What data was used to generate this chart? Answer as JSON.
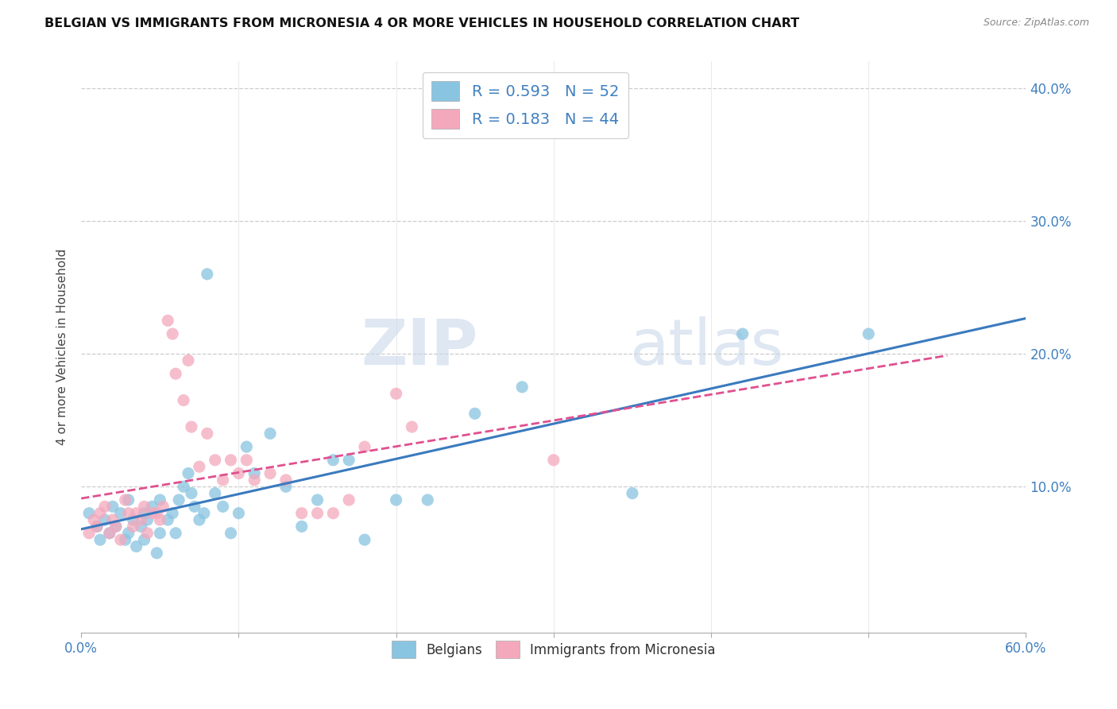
{
  "title": "BELGIAN VS IMMIGRANTS FROM MICRONESIA 4 OR MORE VEHICLES IN HOUSEHOLD CORRELATION CHART",
  "source": "Source: ZipAtlas.com",
  "ylabel": "4 or more Vehicles in Household",
  "xlim": [
    0.0,
    0.6
  ],
  "ylim": [
    -0.01,
    0.42
  ],
  "x_tick_positions": [
    0.0,
    0.1,
    0.2,
    0.3,
    0.4,
    0.5,
    0.6
  ],
  "x_tick_labels": [
    "0.0%",
    "",
    "",
    "",
    "",
    "",
    "60.0%"
  ],
  "y_tick_positions_right": [
    0.1,
    0.2,
    0.3,
    0.4
  ],
  "y_tick_labels_right": [
    "10.0%",
    "20.0%",
    "30.0%",
    "40.0%"
  ],
  "legend_blue_label": "R = 0.593   N = 52",
  "legend_pink_label": "R = 0.183   N = 44",
  "legend_bottom_blue": "Belgians",
  "legend_bottom_pink": "Immigrants from Micronesia",
  "blue_color": "#89c4e1",
  "pink_color": "#f4a8bc",
  "blue_line_color": "#3a7abf",
  "pink_line_color": "#e05090",
  "watermark_zip": "ZIP",
  "watermark_atlas": "atlas",
  "blue_scatter_x": [
    0.005,
    0.01,
    0.012,
    0.015,
    0.018,
    0.02,
    0.022,
    0.025,
    0.028,
    0.03,
    0.03,
    0.033,
    0.035,
    0.038,
    0.04,
    0.04,
    0.042,
    0.045,
    0.048,
    0.05,
    0.05,
    0.055,
    0.058,
    0.06,
    0.062,
    0.065,
    0.068,
    0.07,
    0.072,
    0.075,
    0.078,
    0.08,
    0.085,
    0.09,
    0.095,
    0.1,
    0.105,
    0.11,
    0.12,
    0.13,
    0.14,
    0.15,
    0.16,
    0.17,
    0.18,
    0.2,
    0.22,
    0.25,
    0.28,
    0.35,
    0.42,
    0.5
  ],
  "blue_scatter_y": [
    0.08,
    0.07,
    0.06,
    0.075,
    0.065,
    0.085,
    0.07,
    0.08,
    0.06,
    0.09,
    0.065,
    0.075,
    0.055,
    0.07,
    0.08,
    0.06,
    0.075,
    0.085,
    0.05,
    0.09,
    0.065,
    0.075,
    0.08,
    0.065,
    0.09,
    0.1,
    0.11,
    0.095,
    0.085,
    0.075,
    0.08,
    0.26,
    0.095,
    0.085,
    0.065,
    0.08,
    0.13,
    0.11,
    0.14,
    0.1,
    0.07,
    0.09,
    0.12,
    0.12,
    0.06,
    0.09,
    0.09,
    0.155,
    0.175,
    0.095,
    0.215,
    0.215
  ],
  "pink_scatter_x": [
    0.005,
    0.008,
    0.01,
    0.012,
    0.015,
    0.018,
    0.02,
    0.022,
    0.025,
    0.028,
    0.03,
    0.033,
    0.035,
    0.038,
    0.04,
    0.042,
    0.045,
    0.048,
    0.05,
    0.052,
    0.055,
    0.058,
    0.06,
    0.065,
    0.068,
    0.07,
    0.075,
    0.08,
    0.085,
    0.09,
    0.095,
    0.1,
    0.105,
    0.11,
    0.12,
    0.13,
    0.14,
    0.15,
    0.16,
    0.17,
    0.18,
    0.2,
    0.21,
    0.3
  ],
  "pink_scatter_y": [
    0.065,
    0.075,
    0.07,
    0.08,
    0.085,
    0.065,
    0.075,
    0.07,
    0.06,
    0.09,
    0.08,
    0.07,
    0.08,
    0.075,
    0.085,
    0.065,
    0.08,
    0.08,
    0.075,
    0.085,
    0.225,
    0.215,
    0.185,
    0.165,
    0.195,
    0.145,
    0.115,
    0.14,
    0.12,
    0.105,
    0.12,
    0.11,
    0.12,
    0.105,
    0.11,
    0.105,
    0.08,
    0.08,
    0.08,
    0.09,
    0.13,
    0.17,
    0.145,
    0.12
  ]
}
